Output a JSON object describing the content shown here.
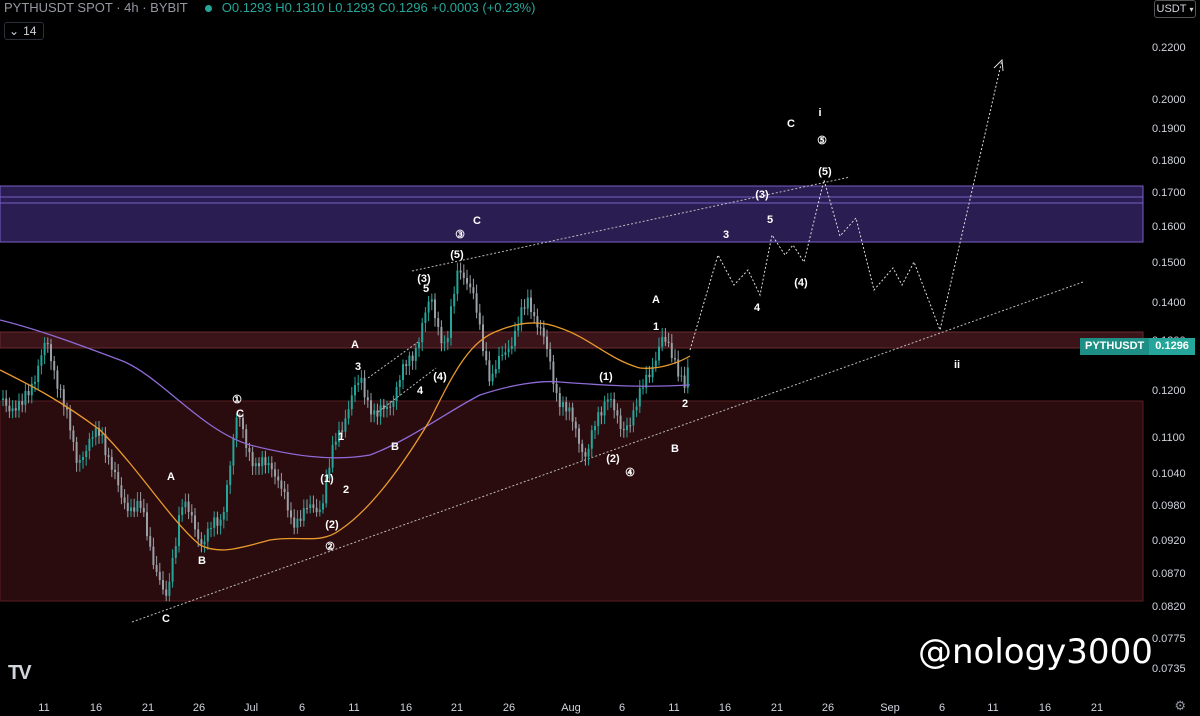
{
  "header": {
    "symbol": "PYTHUSDT SPOT · 4h · BYBIT",
    "ohlc": "O0.1293 H0.1310 L0.1293 C0.1296 +0.0003 (+0.23%)"
  },
  "interval_box": {
    "icon": "chevron-down-icon",
    "label": "14"
  },
  "currency_button": {
    "label": "USDT"
  },
  "price_tag": {
    "symbol": "PYTHUSDT",
    "value": "0.1296"
  },
  "watermark": "@nology3000",
  "logo": "TV",
  "y_axis": [
    "0.2200",
    "0.2000",
    "0.1900",
    "0.1800",
    "0.1700",
    "0.1600",
    "0.1500",
    "0.1400",
    "0.1300",
    "0.1200",
    "0.1100",
    "0.1040",
    "0.0980",
    "0.0920",
    "0.0870",
    "0.0820",
    "0.0775",
    "0.0735"
  ],
  "x_axis": [
    "11",
    "16",
    "21",
    "26",
    "Jul",
    "6",
    "11",
    "16",
    "21",
    "26",
    "Aug",
    "6",
    "11",
    "16",
    "21",
    "26",
    "Sep",
    "6",
    "11",
    "16",
    "21"
  ],
  "wave_labels": [
    {
      "t": "C"
    },
    {
      "t": "A"
    },
    {
      "t": "B"
    },
    {
      "t": "①"
    },
    {
      "t": "C"
    },
    {
      "t": "(1)"
    },
    {
      "t": "2"
    },
    {
      "t": "(2)"
    },
    {
      "t": "②"
    },
    {
      "t": "1"
    },
    {
      "t": "3"
    },
    {
      "t": "A"
    },
    {
      "t": "B"
    },
    {
      "t": "4"
    },
    {
      "t": "(4)"
    },
    {
      "t": "5"
    },
    {
      "t": "(3)"
    },
    {
      "t": "(5)"
    },
    {
      "t": "③"
    },
    {
      "t": "C"
    },
    {
      "t": "(1)"
    },
    {
      "t": "(2)"
    },
    {
      "t": "④"
    },
    {
      "t": "A"
    },
    {
      "t": "1"
    },
    {
      "t": "2"
    },
    {
      "t": "B"
    },
    {
      "t": "3"
    },
    {
      "t": "4"
    },
    {
      "t": "5"
    },
    {
      "t": "(3)"
    },
    {
      "t": "(4)"
    },
    {
      "t": "(5)"
    },
    {
      "t": "⑤"
    },
    {
      "t": "C"
    },
    {
      "t": "i"
    },
    {
      "t": "ii"
    }
  ],
  "colors": {
    "background": "#000000",
    "resistance_zone": "#3b2a6e",
    "support_zone": "#3a0e12",
    "mid_zone": "#3a1418",
    "ma_fast": "#e89a2c",
    "ma_slow": "#8e6bd6",
    "candle_up": "#26a69a",
    "candle_down": "#9aa0a6",
    "accent": "#26a69a"
  }
}
